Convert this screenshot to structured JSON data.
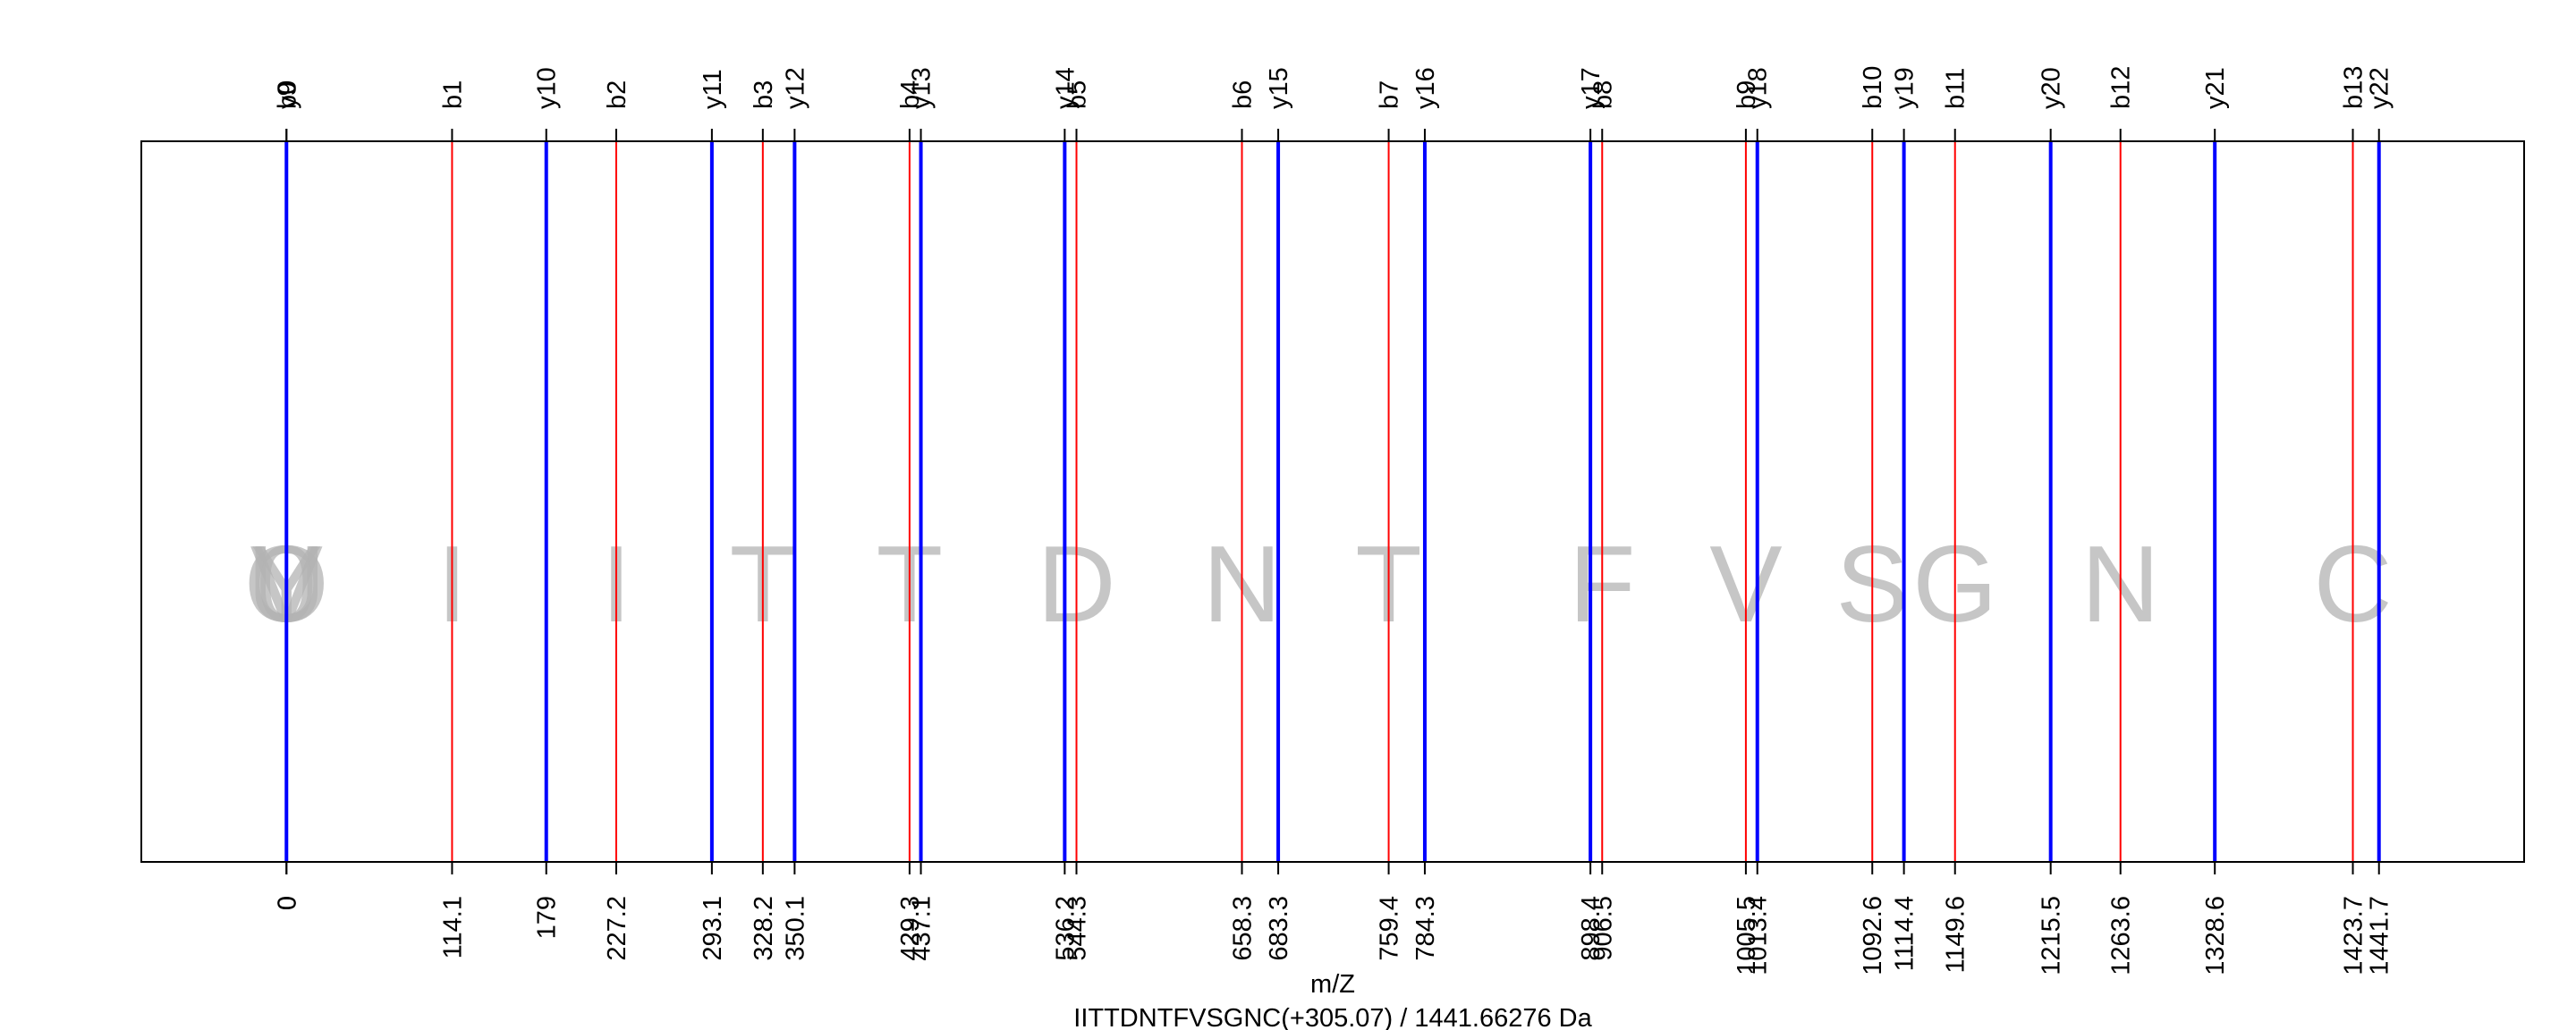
{
  "chart_data": {
    "type": "spectrum",
    "xlabel": "m/Z",
    "subtitle": "IITTDNTFVSGNC(+305.07) / 1441.66276 Da",
    "xlim": [
      -100,
      1541.7
    ],
    "grid": false,
    "series": [
      {
        "name": "b",
        "color": "#ff0000",
        "peaks": [
          {
            "label": "b0",
            "mz": 0
          },
          {
            "label": "b1",
            "mz": 114.1
          },
          {
            "label": "b2",
            "mz": 227.2
          },
          {
            "label": "b3",
            "mz": 328.2
          },
          {
            "label": "b4",
            "mz": 429.3
          },
          {
            "label": "b5",
            "mz": 544.3
          },
          {
            "label": "b6",
            "mz": 658.3
          },
          {
            "label": "b7",
            "mz": 759.4
          },
          {
            "label": "b8",
            "mz": 906.5
          },
          {
            "label": "b9",
            "mz": 1005.5
          },
          {
            "label": "b10",
            "mz": 1092.6
          },
          {
            "label": "b11",
            "mz": 1149.6
          },
          {
            "label": "b12",
            "mz": 1263.6
          },
          {
            "label": "b13",
            "mz": 1423.7
          }
        ]
      },
      {
        "name": "y",
        "color": "#0000ff",
        "peaks": [
          {
            "label": "y9",
            "mz": 0
          },
          {
            "label": "y10",
            "mz": 179
          },
          {
            "label": "y11",
            "mz": 293.1
          },
          {
            "label": "y12",
            "mz": 350.1
          },
          {
            "label": "y13",
            "mz": 437.1
          },
          {
            "label": "y14",
            "mz": 536.2
          },
          {
            "label": "y15",
            "mz": 683.3
          },
          {
            "label": "y16",
            "mz": 784.3
          },
          {
            "label": "y17",
            "mz": 898.4
          },
          {
            "label": "y18",
            "mz": 1013.4
          },
          {
            "label": "y19",
            "mz": 1114.4
          },
          {
            "label": "y20",
            "mz": 1215.5
          },
          {
            "label": "y21",
            "mz": 1328.6
          },
          {
            "label": "y22",
            "mz": 1441.7
          }
        ]
      }
    ],
    "tick_labels": [
      "0",
      "0",
      "114.1",
      "179",
      "227.2",
      "293.1",
      "328.2",
      "350.1",
      "429.3",
      "437.1",
      "536.2",
      "544.3",
      "658.3",
      "683.3",
      "759.4",
      "784.3",
      "898.4",
      "906.5",
      "1005.5",
      "1013.4",
      "1092.6",
      "1114.4",
      "1149.6",
      "1215.5",
      "1263.6",
      "1328.6",
      "1423.7",
      "1441.7"
    ],
    "residues": [
      {
        "letter": "I",
        "mz": 114.1
      },
      {
        "letter": "I",
        "mz": 227.2
      },
      {
        "letter": "T",
        "mz": 328.2
      },
      {
        "letter": "T",
        "mz": 429.3
      },
      {
        "letter": "D",
        "mz": 544.3
      },
      {
        "letter": "N",
        "mz": 658.3
      },
      {
        "letter": "T",
        "mz": 759.4
      },
      {
        "letter": "F",
        "mz": 906.5
      },
      {
        "letter": "V",
        "mz": 1005.5
      },
      {
        "letter": "S",
        "mz": 1092.6
      },
      {
        "letter": "G",
        "mz": 1149.6
      },
      {
        "letter": "N",
        "mz": 1263.6
      },
      {
        "letter": "C",
        "mz": 1423.7
      },
      {
        "letter": "Y",
        "mz": 0
      },
      {
        "letter": "V",
        "mz": 0
      },
      {
        "letter": "O",
        "mz": 0
      },
      {
        "letter": "U",
        "mz": 0
      },
      {
        "letter": "0",
        "mz": 0
      }
    ]
  }
}
